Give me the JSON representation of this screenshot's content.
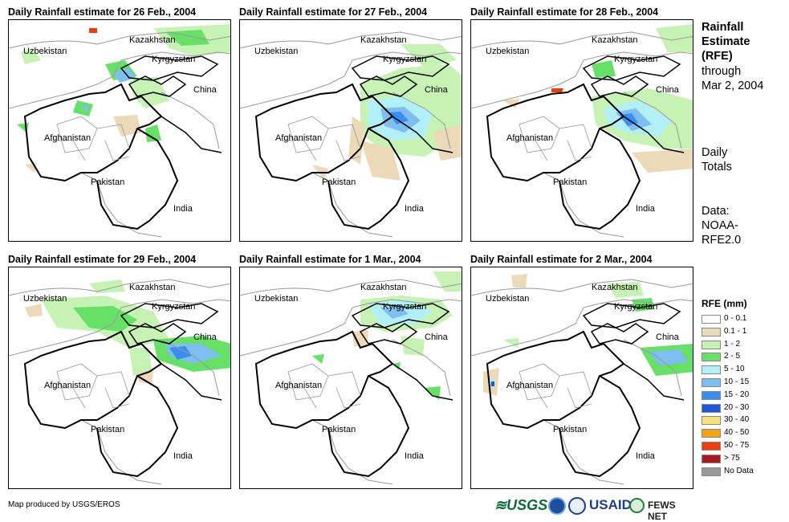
{
  "panels": [
    {
      "title": "Daily Rainfall estimate for 26 Feb., 2004",
      "key": "p1"
    },
    {
      "title": "Daily Rainfall estimate for 27 Feb., 2004",
      "key": "p2"
    },
    {
      "title": "Daily Rainfall estimate for 28 Feb., 2004",
      "key": "p3"
    },
    {
      "title": "Daily Rainfall estimate for 29 Feb., 2004",
      "key": "p4"
    },
    {
      "title": "Daily Rainfall estimate for 1 Mar., 2004",
      "key": "p5"
    },
    {
      "title": "Daily Rainfall estimate for 2 Mar., 2004",
      "key": "p6"
    }
  ],
  "labels": {
    "kazakhstan": "Kazakhstan",
    "uzbekistan": "Uzbekistan",
    "kyrgyzstan": "Kyrgyzstan",
    "china": "China",
    "afghanistan": "Afghanistan",
    "pakistan": "Pakistan",
    "india": "India"
  },
  "side": {
    "title_lines": [
      "Rainfall",
      "Estimate",
      "(RFE)"
    ],
    "through": "through",
    "date": "Mar 2, 2004",
    "daily": "Daily",
    "totals": "Totals",
    "data": "Data:",
    "source1": "NOAA-",
    "source2": "RFE2.0"
  },
  "legend": {
    "title": "RFE (mm)",
    "items": [
      {
        "label": "0 - 0.1",
        "color": "#ffffff"
      },
      {
        "label": "0.1 - 1",
        "color": "#ecd9b8"
      },
      {
        "label": "1 - 2",
        "color": "#c6f2b4"
      },
      {
        "label": "2 - 5",
        "color": "#66e066"
      },
      {
        "label": "5 - 10",
        "color": "#b2f0f7"
      },
      {
        "label": "10 - 15",
        "color": "#7fbef0"
      },
      {
        "label": "15 - 20",
        "color": "#3a8ef0"
      },
      {
        "label": "20 - 30",
        "color": "#1c58d8"
      },
      {
        "label": "30 - 40",
        "color": "#f7e17a"
      },
      {
        "label": "40 - 50",
        "color": "#f5a214"
      },
      {
        "label": "50 - 75",
        "color": "#f03c0a"
      },
      {
        "label": "> 75",
        "color": "#a81820"
      },
      {
        "label": "No Data",
        "color": "#999999"
      }
    ]
  },
  "credit": "Map produced by USGS/EROS",
  "logos": {
    "usgs": "≋USGS",
    "usaid": "USAID",
    "fews": "FEWS NET"
  }
}
